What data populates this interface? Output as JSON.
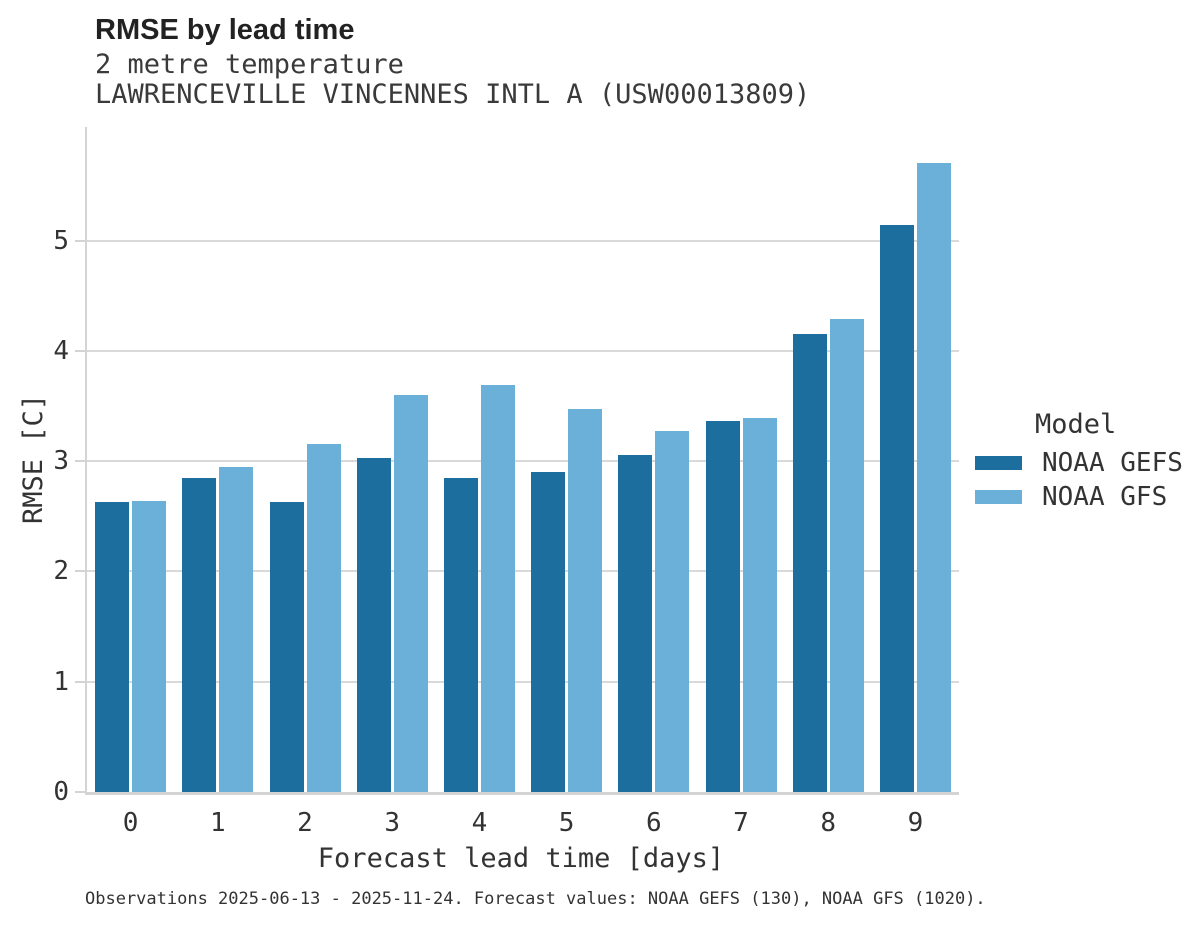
{
  "header": {
    "title": "RMSE by lead time",
    "subtitle1": "2 metre temperature",
    "subtitle2": "LAWRENCEVILLE VINCENNES INTL A (USW00013809)"
  },
  "legend": {
    "title": "Model",
    "items": [
      {
        "label": "NOAA GEFS",
        "color": "#1c6e9e"
      },
      {
        "label": "NOAA GFS",
        "color": "#6bb0d8"
      }
    ]
  },
  "caption": "Observations 2025-06-13 - 2025-11-24. Forecast values: NOAA GEFS (130), NOAA GFS (1020).",
  "colors": {
    "bar_dark": "#1c6e9e",
    "bar_light": "#6bb0d8",
    "gridline": "#d9d9d9",
    "axis": "#d4d4d4",
    "text": "#333333",
    "title_text": "#222222",
    "background": "#ffffff"
  },
  "chart_data": {
    "type": "bar",
    "title": "RMSE by lead time",
    "subtitle": [
      "2 metre temperature",
      "LAWRENCEVILLE VINCENNES INTL A (USW00013809)"
    ],
    "categories": [
      "0",
      "1",
      "2",
      "3",
      "4",
      "5",
      "6",
      "7",
      "8",
      "9"
    ],
    "series": [
      {
        "name": "NOAA GEFS",
        "color": "#1c6e9e",
        "values": [
          2.63,
          2.85,
          2.63,
          3.03,
          2.85,
          2.9,
          3.06,
          3.36,
          4.15,
          5.14
        ]
      },
      {
        "name": "NOAA GFS",
        "color": "#6bb0d8",
        "values": [
          2.64,
          2.95,
          3.16,
          3.6,
          3.69,
          3.47,
          3.27,
          3.39,
          4.29,
          5.7
        ]
      }
    ],
    "xlabel": "Forecast lead time [days]",
    "ylabel": "RMSE [C]",
    "ylim": [
      0,
      6.03
    ],
    "yticks": [
      0,
      1,
      2,
      3,
      4,
      5
    ],
    "grid": true,
    "legend_title": "Model",
    "legend_position": "right"
  }
}
